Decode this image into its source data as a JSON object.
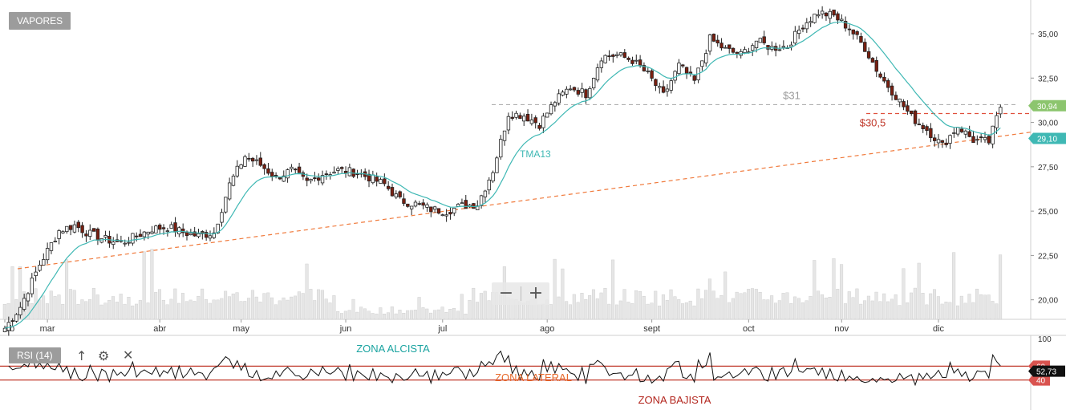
{
  "title_button": "VAPORES",
  "indicator": {
    "label": "RSI (14)",
    "current_value": "52,73",
    "upper_level": "60",
    "lower_level": "40",
    "axis_top_label": "100",
    "zones": {
      "upper": "ZONA ALCISTA",
      "middle": "ZONA LATERAL",
      "lower": "ZONA BAJISTA"
    },
    "icons": [
      "arrow-up-icon",
      "gear-icon",
      "close-icon"
    ]
  },
  "zoom": {
    "minus": "−",
    "plus": "+"
  },
  "colors": {
    "candle_up": "#ffffff",
    "candle_down": "#7a1f10",
    "ma_line": "#3fb8b4",
    "support_line": "#f07a3c",
    "resistance_31": "#b0b0b0",
    "level_305": "#e0503c",
    "last_price_tag": "#8cc56e",
    "ma_tag": "#3fb8b4",
    "rsi_line": "#111111",
    "rsi_levels": "#c0392b",
    "volume": "#e6e6e6",
    "zone_alcista": "#1aa3a0",
    "zone_lateral": "#e8692a",
    "zone_bajista": "#b3261e"
  },
  "chart_data": {
    "type": "candlestick",
    "x_labels": [
      "eb",
      "mar",
      "abr",
      "may",
      "jun",
      "jul",
      "ago",
      "sept",
      "oct",
      "nov",
      "dic"
    ],
    "y_ticks": [
      "35,00",
      "32,50",
      "30,00",
      "27,50",
      "25,00",
      "22,50",
      "20,00"
    ],
    "ylim": [
      18.9,
      36.9
    ],
    "annotations": {
      "resistance": {
        "label": "$31",
        "value": 31.0
      },
      "level": {
        "label": "$30,5",
        "value": 30.5
      },
      "ma_label": "TMA13",
      "support_start": 21.75,
      "support_end": 29.45
    },
    "last_price": {
      "label": "30,94",
      "value": 30.94
    },
    "ma_last": {
      "label": "29,10",
      "value": 29.1
    },
    "anchors": [
      [
        0,
        18.4
      ],
      [
        4,
        19.6
      ],
      [
        9,
        22.0
      ],
      [
        14,
        23.9
      ],
      [
        18,
        24.2
      ],
      [
        22,
        23.7
      ],
      [
        26,
        23.4
      ],
      [
        30,
        23.2
      ],
      [
        34,
        23.6
      ],
      [
        38,
        24.0
      ],
      [
        42,
        24.1
      ],
      [
        46,
        23.8
      ],
      [
        50,
        23.6
      ],
      [
        54,
        23.8
      ],
      [
        58,
        26.5
      ],
      [
        62,
        28.1
      ],
      [
        66,
        27.6
      ],
      [
        70,
        26.9
      ],
      [
        74,
        27.3
      ],
      [
        78,
        26.6
      ],
      [
        82,
        27.1
      ],
      [
        86,
        27.3
      ],
      [
        90,
        27.2
      ],
      [
        94,
        26.9
      ],
      [
        98,
        26.5
      ],
      [
        102,
        25.6
      ],
      [
        106,
        25.4
      ],
      [
        110,
        25.1
      ],
      [
        114,
        25.0
      ],
      [
        118,
        25.3
      ],
      [
        122,
        25.4
      ],
      [
        126,
        27.3
      ],
      [
        130,
        30.5
      ],
      [
        134,
        30.4
      ],
      [
        138,
        29.9
      ],
      [
        142,
        31.2
      ],
      [
        146,
        32.0
      ],
      [
        150,
        31.6
      ],
      [
        154,
        33.7
      ],
      [
        158,
        33.8
      ],
      [
        162,
        33.5
      ],
      [
        166,
        32.7
      ],
      [
        170,
        31.5
      ],
      [
        174,
        33.2
      ],
      [
        178,
        32.3
      ],
      [
        182,
        34.7
      ],
      [
        186,
        34.1
      ],
      [
        190,
        33.8
      ],
      [
        194,
        34.6
      ],
      [
        198,
        34.2
      ],
      [
        202,
        34.3
      ],
      [
        206,
        35.5
      ],
      [
        210,
        36.2
      ],
      [
        214,
        36.0
      ],
      [
        218,
        35.3
      ],
      [
        222,
        34.2
      ],
      [
        226,
        32.6
      ],
      [
        230,
        31.5
      ],
      [
        234,
        30.3
      ],
      [
        238,
        29.6
      ],
      [
        242,
        28.7
      ],
      [
        246,
        29.8
      ],
      [
        250,
        29.0
      ],
      [
        254,
        28.9
      ],
      [
        257,
        30.9
      ]
    ],
    "volume_scale": [
      0,
      35
    ],
    "rsi_range": [
      0,
      100
    ]
  }
}
